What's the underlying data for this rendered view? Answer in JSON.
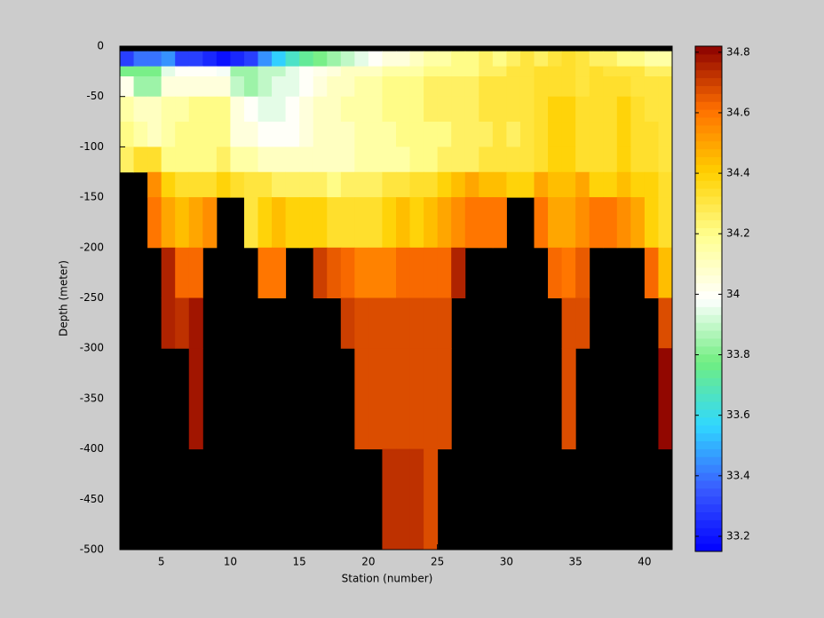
{
  "chart_data": {
    "type": "heatmap",
    "x_label": "Station (number)",
    "y_label": "Depth (meter)",
    "xlim": [
      2,
      42
    ],
    "ylim": [
      -500,
      0
    ],
    "xticks": [
      5,
      10,
      15,
      20,
      25,
      30,
      35,
      40
    ],
    "yticks": [
      0,
      -50,
      -100,
      -150,
      -200,
      -250,
      -300,
      -350,
      -400,
      -450,
      -500
    ],
    "x_bins": [
      2,
      3,
      4,
      5,
      6,
      7,
      8,
      9,
      10,
      11,
      12,
      13,
      14,
      15,
      16,
      17,
      18,
      19,
      20,
      21,
      22,
      23,
      24,
      25,
      26,
      27,
      28,
      29,
      30,
      31,
      32,
      33,
      34,
      35,
      36,
      37,
      38,
      39,
      40,
      41,
      42
    ],
    "y_bins": [
      0,
      -5,
      -20,
      -30,
      -50,
      -75,
      -100,
      -125,
      -150,
      -200,
      -250,
      -300,
      -400,
      -500
    ],
    "background": "#000000",
    "clim": [
      33.15,
      34.82
    ],
    "colorbar_ticks": [
      33.2,
      33.4,
      33.6,
      33.8,
      34,
      34.2,
      34.4,
      34.6,
      34.8
    ],
    "colormap": [
      "#0000ff",
      "#3a5cff",
      "#30d8ff",
      "#70ee80",
      "#ffffff",
      "#ffff90",
      "#ffd000",
      "#ff7000",
      "#8b0000"
    ],
    "values": [
      [
        null,
        null,
        null,
        null,
        null,
        null,
        null,
        null,
        null,
        null,
        null,
        null,
        null,
        null,
        null,
        null,
        null,
        null,
        null,
        null,
        null,
        null,
        null,
        null,
        null,
        null,
        null,
        null,
        null,
        null,
        null,
        null,
        null,
        null,
        null,
        null,
        null,
        null,
        null,
        null
      ],
      [
        33.3,
        33.4,
        33.4,
        33.45,
        33.3,
        33.3,
        33.25,
        33.2,
        33.25,
        33.3,
        33.45,
        33.55,
        33.65,
        33.75,
        33.8,
        33.85,
        33.9,
        33.95,
        34.0,
        34.05,
        34.05,
        34.1,
        34.15,
        34.15,
        34.2,
        34.2,
        34.25,
        34.2,
        34.25,
        34.3,
        34.25,
        34.3,
        34.35,
        34.3,
        34.25,
        34.25,
        34.2,
        34.2,
        34.15,
        34.15
      ],
      [
        33.8,
        33.8,
        33.8,
        33.95,
        34.0,
        34.0,
        34.0,
        33.98,
        33.85,
        33.85,
        33.9,
        33.9,
        33.95,
        34.0,
        34.02,
        34.05,
        34.1,
        34.1,
        34.1,
        34.15,
        34.15,
        34.15,
        34.2,
        34.2,
        34.2,
        34.2,
        34.25,
        34.25,
        34.3,
        34.3,
        34.35,
        34.35,
        34.35,
        34.3,
        34.35,
        34.3,
        34.3,
        34.3,
        34.25,
        34.25
      ],
      [
        34.02,
        33.85,
        33.85,
        34.05,
        34.05,
        34.05,
        34.05,
        34.05,
        33.9,
        33.85,
        33.9,
        33.95,
        33.95,
        34.0,
        34.05,
        34.1,
        34.1,
        34.15,
        34.15,
        34.2,
        34.2,
        34.2,
        34.25,
        34.25,
        34.25,
        34.25,
        34.3,
        34.3,
        34.3,
        34.3,
        34.35,
        34.35,
        34.35,
        34.3,
        34.35,
        34.35,
        34.35,
        34.3,
        34.3,
        34.3
      ],
      [
        34.15,
        34.1,
        34.1,
        34.15,
        34.15,
        34.2,
        34.2,
        34.2,
        34.05,
        34.0,
        33.95,
        33.95,
        34.0,
        34.05,
        34.1,
        34.1,
        34.15,
        34.15,
        34.15,
        34.2,
        34.2,
        34.2,
        34.25,
        34.25,
        34.25,
        34.25,
        34.3,
        34.3,
        34.3,
        34.3,
        34.35,
        34.4,
        34.4,
        34.35,
        34.35,
        34.35,
        34.4,
        34.35,
        34.3,
        34.3
      ],
      [
        34.2,
        34.15,
        34.1,
        34.15,
        34.2,
        34.2,
        34.2,
        34.2,
        34.05,
        34.05,
        34.0,
        34.0,
        34.0,
        34.05,
        34.1,
        34.1,
        34.1,
        34.15,
        34.15,
        34.15,
        34.2,
        34.2,
        34.2,
        34.2,
        34.25,
        34.25,
        34.25,
        34.3,
        34.25,
        34.3,
        34.35,
        34.4,
        34.4,
        34.35,
        34.35,
        34.35,
        34.4,
        34.35,
        34.35,
        34.3
      ],
      [
        34.25,
        34.35,
        34.35,
        34.2,
        34.2,
        34.2,
        34.2,
        34.25,
        34.15,
        34.15,
        34.1,
        34.1,
        34.1,
        34.1,
        34.1,
        34.1,
        34.1,
        34.15,
        34.15,
        34.15,
        34.15,
        34.2,
        34.2,
        34.25,
        34.25,
        34.25,
        34.3,
        34.3,
        34.3,
        34.3,
        34.35,
        34.4,
        34.4,
        34.35,
        34.35,
        34.35,
        34.4,
        34.35,
        34.35,
        34.3
      ],
      [
        null,
        null,
        34.55,
        34.4,
        34.35,
        34.35,
        34.35,
        34.4,
        34.35,
        34.3,
        34.3,
        34.25,
        34.25,
        34.25,
        34.25,
        34.2,
        34.25,
        34.25,
        34.25,
        34.3,
        34.3,
        34.35,
        34.35,
        34.4,
        34.45,
        34.5,
        34.45,
        34.45,
        34.4,
        34.4,
        34.5,
        34.45,
        34.45,
        34.5,
        34.4,
        34.4,
        34.45,
        34.4,
        34.4,
        34.35
      ],
      [
        null,
        null,
        34.6,
        34.5,
        34.45,
        34.5,
        34.55,
        null,
        null,
        34.3,
        34.4,
        34.45,
        34.4,
        34.4,
        34.4,
        34.35,
        34.35,
        34.35,
        34.35,
        34.4,
        34.45,
        34.4,
        34.45,
        34.5,
        34.55,
        34.6,
        34.6,
        34.6,
        null,
        null,
        34.6,
        34.5,
        34.5,
        34.55,
        34.6,
        34.6,
        34.55,
        34.5,
        34.4,
        34.35
      ],
      [
        null,
        null,
        null,
        34.75,
        34.62,
        34.62,
        null,
        null,
        null,
        null,
        34.6,
        34.6,
        null,
        null,
        34.7,
        34.65,
        34.62,
        34.58,
        34.58,
        34.58,
        34.62,
        34.62,
        34.62,
        34.62,
        34.75,
        null,
        null,
        null,
        null,
        null,
        null,
        34.62,
        34.6,
        34.65,
        null,
        null,
        null,
        null,
        34.62,
        34.45
      ],
      [
        null,
        null,
        null,
        34.75,
        34.72,
        34.78,
        null,
        null,
        null,
        null,
        null,
        null,
        null,
        null,
        null,
        null,
        34.7,
        34.68,
        34.68,
        34.68,
        34.68,
        34.68,
        34.68,
        34.68,
        null,
        null,
        null,
        null,
        null,
        null,
        null,
        null,
        34.68,
        34.68,
        null,
        null,
        null,
        null,
        null,
        34.68
      ],
      [
        null,
        null,
        null,
        null,
        null,
        34.78,
        null,
        null,
        null,
        null,
        null,
        null,
        null,
        null,
        null,
        null,
        null,
        34.68,
        34.68,
        34.68,
        34.68,
        34.68,
        34.68,
        34.68,
        null,
        null,
        null,
        null,
        null,
        null,
        null,
        null,
        34.68,
        null,
        null,
        null,
        null,
        null,
        null,
        34.8
      ],
      [
        null,
        null,
        null,
        null,
        null,
        null,
        null,
        null,
        null,
        null,
        null,
        null,
        null,
        null,
        null,
        null,
        null,
        null,
        null,
        34.72,
        34.72,
        34.72,
        34.68,
        null,
        null,
        null,
        null,
        null,
        null,
        null,
        null,
        null,
        null,
        null,
        null,
        null,
        null,
        null,
        null,
        null
      ]
    ]
  }
}
